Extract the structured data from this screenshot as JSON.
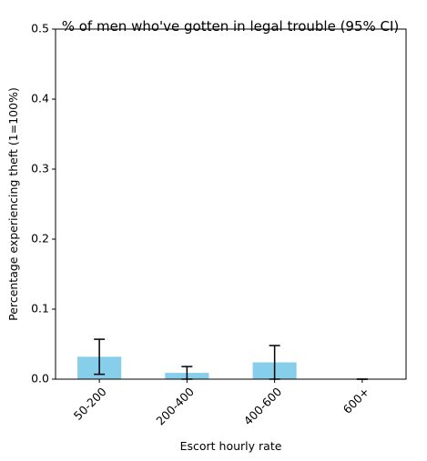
{
  "chart_data": {
    "type": "bar",
    "title": "% of men who've gotten in legal trouble (95% CI)",
    "xlabel": "Escort hourly rate",
    "ylabel": "Percentage experiencing theft (1=100%)",
    "categories": [
      "50-200",
      "200-400",
      "400-600",
      "600+"
    ],
    "values": [
      0.032,
      0.009,
      0.024,
      0.0
    ],
    "ci_low": [
      0.007,
      0.0,
      0.0,
      0.0
    ],
    "ci_high": [
      0.057,
      0.018,
      0.048,
      0.0
    ],
    "ylim": [
      0,
      0.5
    ],
    "yticks": [
      0.0,
      0.1,
      0.2,
      0.3,
      0.4,
      0.5
    ],
    "ytick_labels": [
      "0.0",
      "0.1",
      "0.2",
      "0.3",
      "0.4",
      "0.5"
    ],
    "bar_color": "#87ceeb",
    "errorbar_color": "#000000",
    "grid": false,
    "legend": "none"
  }
}
